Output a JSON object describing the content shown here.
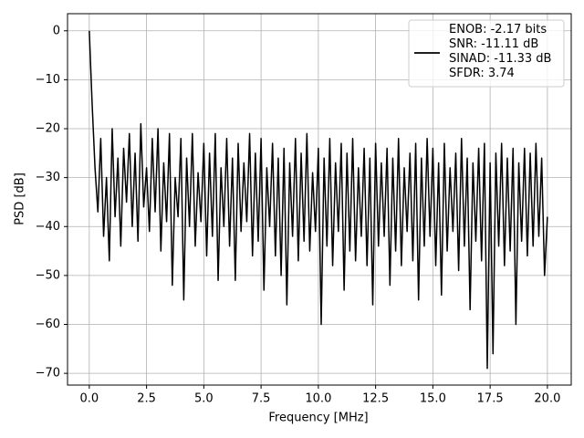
{
  "chart_data": {
    "type": "line",
    "xlabel": "Frequency [MHz]",
    "ylabel": "PSD [dB]",
    "xlim": [
      -0.95,
      21.04
    ],
    "ylim": [
      -72.4,
      3.5
    ],
    "xticks": [
      {
        "value": 0,
        "label": "0.0"
      },
      2.5,
      {
        "value": 5,
        "label": "5.0"
      },
      7.5,
      {
        "value": 10,
        "label": "10.0"
      },
      12.5,
      {
        "value": 15,
        "label": "15.0"
      },
      17.5,
      {
        "value": 20,
        "label": "20.0"
      }
    ],
    "yticks": [
      0,
      {
        "value": -10,
        "label": "−10"
      },
      {
        "value": -20,
        "label": "−20"
      },
      {
        "value": -30,
        "label": "−30"
      },
      {
        "value": -40,
        "label": "−40"
      },
      {
        "value": -50,
        "label": "−50"
      },
      {
        "value": -60,
        "label": "−60"
      },
      {
        "value": -70,
        "label": "−70"
      }
    ],
    "grid": true,
    "legend": "upper right",
    "x": [
      0,
      0.125,
      0.25,
      0.375,
      0.5,
      0.625,
      0.75,
      0.875,
      1,
      1.125,
      1.25,
      1.375,
      1.5,
      1.625,
      1.75,
      1.875,
      2,
      2.125,
      2.25,
      2.375,
      2.5,
      2.625,
      2.75,
      2.875,
      3,
      3.125,
      3.25,
      3.375,
      3.5,
      3.625,
      3.75,
      3.875,
      4,
      4.125,
      4.25,
      4.375,
      4.5,
      4.625,
      4.75,
      4.875,
      5,
      5.125,
      5.25,
      5.375,
      5.5,
      5.625,
      5.75,
      5.875,
      6,
      6.125,
      6.25,
      6.375,
      6.5,
      6.625,
      6.75,
      6.875,
      7,
      7.125,
      7.25,
      7.375,
      7.5,
      7.625,
      7.75,
      7.875,
      8,
      8.125,
      8.25,
      8.375,
      8.5,
      8.625,
      8.75,
      8.875,
      9,
      9.125,
      9.25,
      9.375,
      9.5,
      9.625,
      9.75,
      9.875,
      10,
      10.125,
      10.25,
      10.375,
      10.5,
      10.625,
      10.75,
      10.875,
      11,
      11.125,
      11.25,
      11.375,
      11.5,
      11.625,
      11.75,
      11.875,
      12,
      12.125,
      12.25,
      12.375,
      12.5,
      12.625,
      12.75,
      12.875,
      13,
      13.125,
      13.25,
      13.375,
      13.5,
      13.625,
      13.75,
      13.875,
      14,
      14.125,
      14.25,
      14.375,
      14.5,
      14.625,
      14.75,
      14.875,
      15,
      15.125,
      15.25,
      15.375,
      15.5,
      15.625,
      15.75,
      15.875,
      16,
      16.125,
      16.25,
      16.375,
      16.5,
      16.625,
      16.75,
      16.875,
      17,
      17.125,
      17.25,
      17.375,
      17.5,
      17.625,
      17.75,
      17.875,
      18,
      18.125,
      18.25,
      18.375,
      18.5,
      18.625,
      18.75,
      18.875,
      19,
      19.125,
      19.25,
      19.375,
      19.5,
      19.625,
      19.75,
      19.875,
      20
    ],
    "series": [
      {
        "name": "ENOB: -2.17 bits\nSNR: -11.11 dB\nSINAD: -11.33 dB\nSFDR: 3.74",
        "color": "#000000",
        "values": [
          0,
          -15,
          -28,
          -37,
          -22,
          -42,
          -30,
          -47,
          -20,
          -38,
          -26,
          -44,
          -24,
          -35,
          -21,
          -40,
          -25,
          -43,
          -19,
          -36,
          -28,
          -41,
          -22,
          -37,
          -20,
          -45,
          -27,
          -39,
          -21,
          -52,
          -30,
          -38,
          -22,
          -55,
          -26,
          -40,
          -21,
          -44,
          -29,
          -39,
          -23,
          -46,
          -25,
          -42,
          -21,
          -51,
          -28,
          -40,
          -22,
          -44,
          -26,
          -51,
          -23,
          -41,
          -27,
          -39,
          -21,
          -46,
          -25,
          -43,
          -22,
          -53,
          -28,
          -40,
          -23,
          -46,
          -26,
          -50,
          -24,
          -56,
          -27,
          -42,
          -22,
          -47,
          -25,
          -43,
          -21,
          -45,
          -29,
          -41,
          -24,
          -60,
          -26,
          -44,
          -22,
          -48,
          -27,
          -41,
          -23,
          -53,
          -25,
          -45,
          -22,
          -47,
          -28,
          -42,
          -24,
          -48,
          -26,
          -56,
          -23,
          -44,
          -27,
          -42,
          -24,
          -52,
          -26,
          -45,
          -22,
          -48,
          -28,
          -41,
          -25,
          -47,
          -23,
          -55,
          -26,
          -44,
          -22,
          -42,
          -24,
          -48,
          -27,
          -54,
          -23,
          -45,
          -28,
          -41,
          -25,
          -49,
          -22,
          -44,
          -26,
          -57,
          -27,
          -43,
          -24,
          -47,
          -23,
          -69,
          -27,
          -66,
          -25,
          -44,
          -23,
          -48,
          -26,
          -45,
          -24,
          -60,
          -27,
          -43,
          -24,
          -46,
          -25,
          -44,
          -23,
          -42,
          -26,
          -50,
          -38
        ]
      }
    ]
  }
}
